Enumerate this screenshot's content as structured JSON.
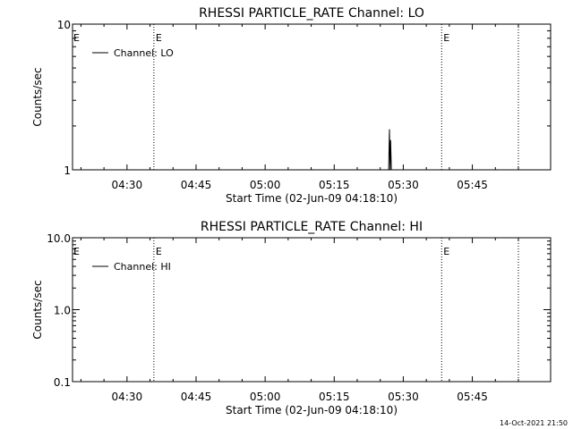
{
  "chart_data": [
    {
      "type": "line",
      "title": "RHESSI PARTICLE_RATE Channel: LO",
      "xlabel": "Start Time (02-Jun-09 04:18:10)",
      "ylabel": "Counts/sec",
      "yscale": "log",
      "ylim": [
        1,
        10
      ],
      "yticks": [
        1,
        10
      ],
      "ytick_labels": [
        "1",
        "10"
      ],
      "xlim": [
        "04:18:10",
        "06:02:00"
      ],
      "xticks": [
        "04:30",
        "04:45",
        "05:00",
        "05:15",
        "05:30",
        "05:45"
      ],
      "legend": {
        "placement": "top-left",
        "entries": [
          "Channel: LO"
        ]
      },
      "event_lines": [
        {
          "time": "04:35:50",
          "label": "E"
        },
        {
          "time": "05:38:20",
          "label": "E"
        },
        {
          "time": "05:55:00",
          "label": ""
        }
      ],
      "start_marker": "E",
      "series": [
        {
          "name": "Channel: LO",
          "x": [
            "05:26:50",
            "05:27:00",
            "05:27:08",
            "05:27:15",
            "05:27:25"
          ],
          "values": [
            1,
            1.9,
            1,
            1.6,
            1
          ]
        }
      ]
    },
    {
      "type": "line",
      "title": "RHESSI PARTICLE_RATE Channel: HI",
      "xlabel": "Start Time (02-Jun-09 04:18:10)",
      "ylabel": "Counts/sec",
      "yscale": "log",
      "ylim": [
        0.1,
        10
      ],
      "yticks": [
        0.1,
        1,
        10
      ],
      "ytick_labels": [
        "0.1",
        "1.0",
        "10.0"
      ],
      "xlim": [
        "04:18:10",
        "06:02:00"
      ],
      "xticks": [
        "04:30",
        "04:45",
        "05:00",
        "05:15",
        "05:30",
        "05:45"
      ],
      "legend": {
        "placement": "top-left",
        "entries": [
          "Channel: HI"
        ]
      },
      "event_lines": [
        {
          "time": "04:35:50",
          "label": "E"
        },
        {
          "time": "05:38:20",
          "label": "E"
        },
        {
          "time": "05:55:00",
          "label": ""
        }
      ],
      "start_marker": "E",
      "series": [
        {
          "name": "Channel: HI",
          "x": [],
          "values": []
        }
      ]
    }
  ],
  "timestamp": "14-Oct-2021 21:50"
}
